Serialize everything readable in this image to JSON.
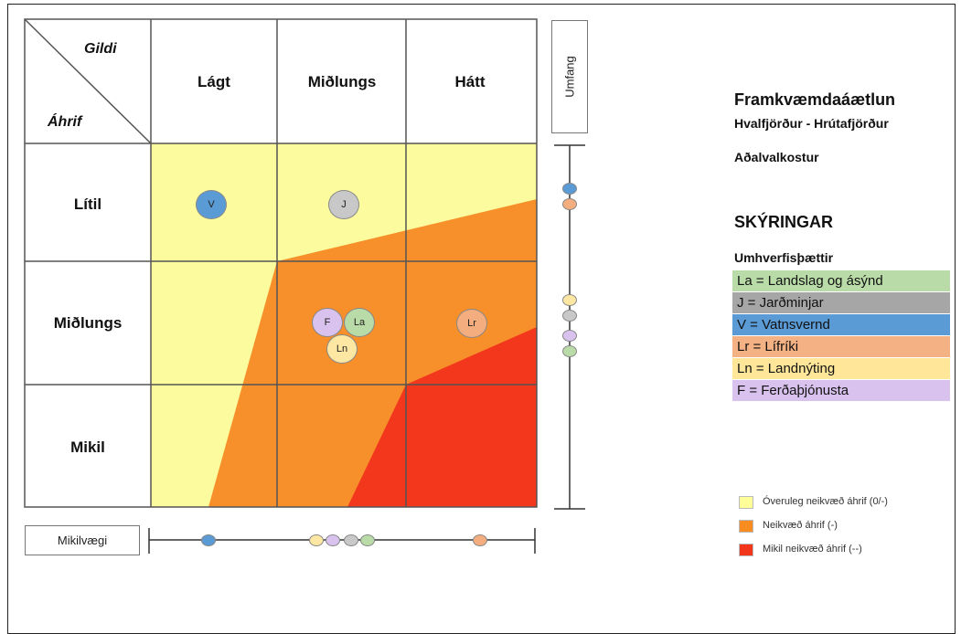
{
  "matrix": {
    "corner_top": "Gildi",
    "corner_bottom": "Áhrif",
    "columns": [
      "Lágt",
      "Miðlungs",
      "Hátt"
    ],
    "rows": [
      "Lítil",
      "Miðlungs",
      "Mikil"
    ],
    "umfang_label": "Umfang",
    "mikilvaegi_label": "Mikilvægi",
    "items": [
      {
        "code": "V",
        "color": "#5b9bd5",
        "row": "Lítil",
        "col": "Lágt"
      },
      {
        "code": "J",
        "color": "#c8c8c8",
        "row": "Lítil",
        "col": "Miðlungs"
      },
      {
        "code": "F",
        "color": "#d9c3ee",
        "row": "Miðlungs",
        "col": "Miðlungs"
      },
      {
        "code": "La",
        "color": "#b9dba8",
        "row": "Miðlungs",
        "col": "Miðlungs"
      },
      {
        "code": "Ln",
        "color": "#fde7a3",
        "row": "Miðlungs",
        "col": "Miðlungs"
      },
      {
        "code": "Lr",
        "color": "#f4ad7f",
        "row": "Miðlungs",
        "col": "Hátt"
      }
    ]
  },
  "side": {
    "title": "Framkvæmdaáætlun",
    "subtitle": "Hvalfjörður - Hrútafjörður",
    "option": "Aðalvalkostur",
    "legend_heading": "SKÝRINGAR",
    "factors_heading": "Umhverfisþættir",
    "factors": [
      {
        "label": "La = Landslag og ásýnd",
        "color": "#b9dba8"
      },
      {
        "label": "J = Jarðminjar",
        "color": "#a6a6a6"
      },
      {
        "label": "V = Vatnsvernd",
        "color": "#5b9bd5"
      },
      {
        "label": "Lr = Lífríki",
        "color": "#f4b183"
      },
      {
        "label": "Ln = Landnýting",
        "color": "#ffe699"
      },
      {
        "label": "F = Ferðaþjónusta",
        "color": "#d9c3ee"
      }
    ],
    "impacts": [
      {
        "label": "Óveruleg neikvæð áhrif (0/-)",
        "color": "#ffff99"
      },
      {
        "label": "Neikvæð áhrif (-)",
        "color": "#f68b1f"
      },
      {
        "label": "Mikil neikvæð áhrif (--)",
        "color": "#f2361c"
      }
    ]
  },
  "colors": {
    "yellow": "#fcfc9e",
    "orange": "#f78f2a",
    "red": "#f2371d"
  }
}
